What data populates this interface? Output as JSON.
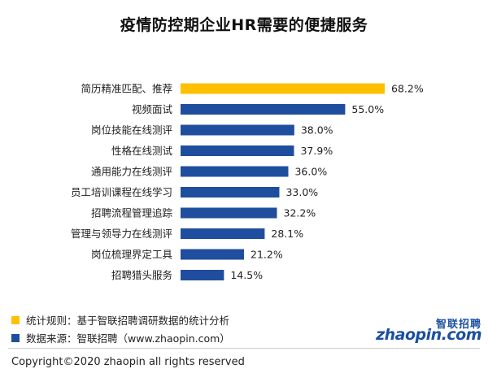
{
  "chart_data": {
    "type": "bar",
    "orientation": "horizontal",
    "title": "疫情防控期企业HR需要的便捷服务",
    "categories": [
      "简历精准匹配、推荐",
      "视频面试",
      "岗位技能在线测评",
      "性格在线测试",
      "通用能力在线测评",
      "员工培训课程在线学习",
      "招聘流程管理追踪",
      "管理与领导力在线测评",
      "岗位梳理界定工具",
      "招聘猎头服务"
    ],
    "values": [
      68.2,
      55.0,
      38.0,
      37.9,
      36.0,
      33.0,
      32.2,
      28.1,
      21.2,
      14.5
    ],
    "value_labels": [
      "68.2%",
      "55.0%",
      "38.0%",
      "37.9%",
      "36.0%",
      "33.0%",
      "32.2%",
      "28.1%",
      "21.2%",
      "14.5%"
    ],
    "highlight_index": 0,
    "xlim": [
      0,
      70
    ],
    "xlabel": "",
    "ylabel": "",
    "grid": false
  },
  "colors": {
    "highlight": "#FFC000",
    "bar": "#1F4E9E",
    "logo_blue": "#1B4FA0",
    "logo_orange": "#F39C12"
  },
  "footer": {
    "stat_rule": "统计规则：基于智联招聘调研数据的统计分析",
    "data_source": "数据来源：智联招聘（www.zhaopin.com）",
    "copyright": "Copyright©2020 zhaopin all rights reserved"
  },
  "logo": {
    "cn": "智联招聘",
    "en": "zhaopin.com"
  }
}
